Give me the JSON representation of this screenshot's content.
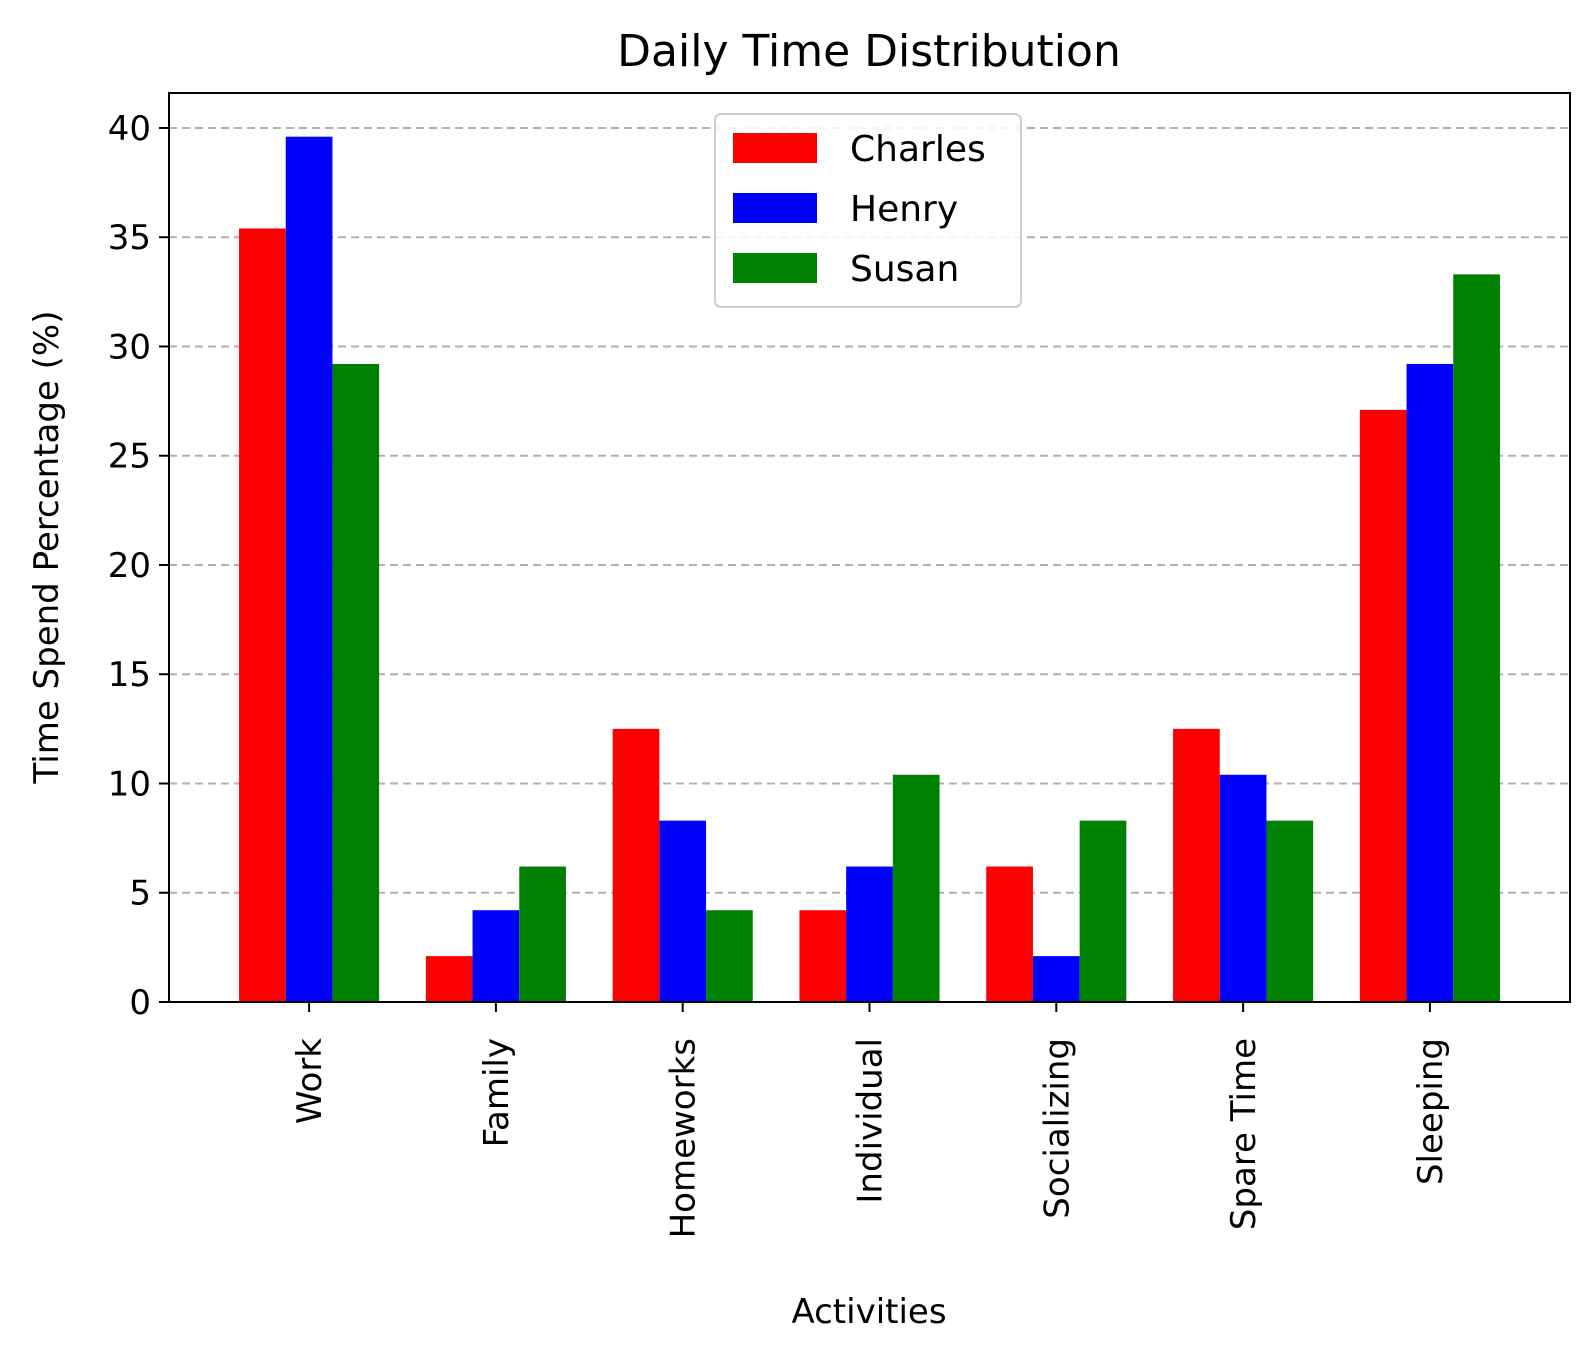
{
  "chart_data": {
    "type": "bar",
    "title": "Daily Time Distribution",
    "xlabel": "Activities",
    "ylabel": "Time Spend Percentage (%)",
    "categories": [
      "Work",
      "Family",
      "Homeworks",
      "Individual",
      "Socializing",
      "Spare Time",
      "Sleeping"
    ],
    "series": [
      {
        "name": "Charles",
        "color": "#ff0000",
        "values": [
          35.4,
          2.1,
          12.5,
          4.2,
          6.2,
          12.5,
          27.1
        ]
      },
      {
        "name": "Henry",
        "color": "#0000ff",
        "values": [
          39.6,
          4.2,
          8.3,
          6.2,
          2.1,
          10.4,
          29.2
        ]
      },
      {
        "name": "Susan",
        "color": "#008000",
        "values": [
          29.2,
          6.2,
          4.2,
          10.4,
          8.3,
          8.3,
          33.3
        ]
      }
    ],
    "ylim": [
      0,
      41.6
    ],
    "yticks": [
      0,
      5,
      10,
      15,
      20,
      25,
      30,
      35,
      40
    ],
    "grid": "y-dashed",
    "legend_position": "upper-center"
  }
}
